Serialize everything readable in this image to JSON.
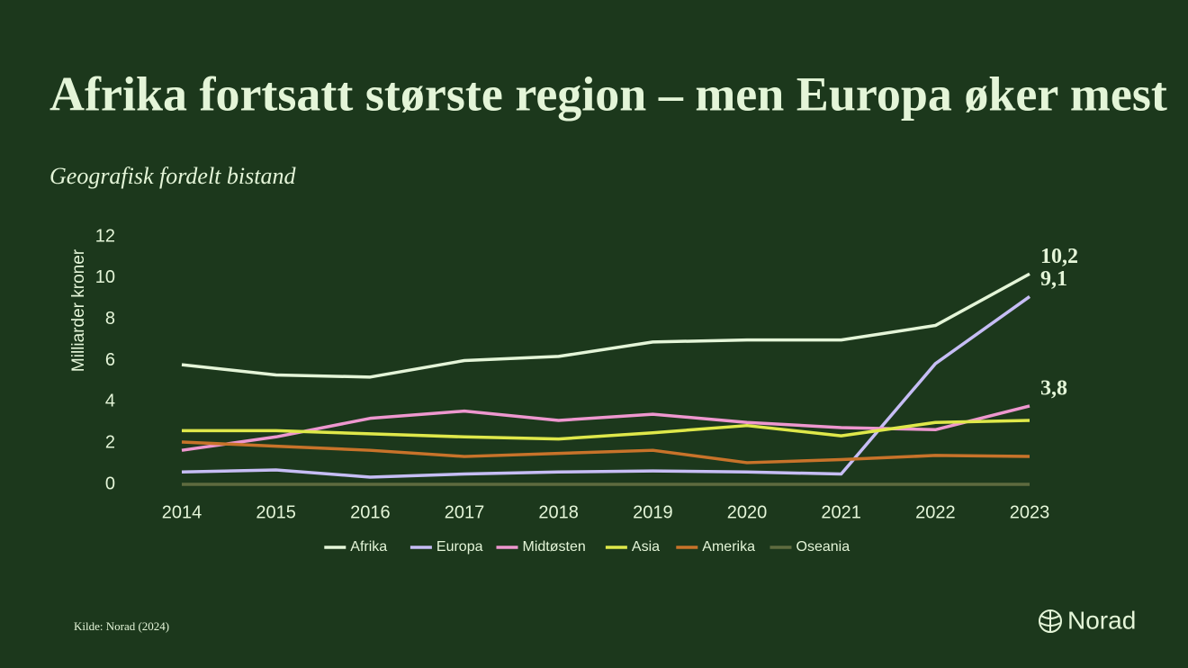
{
  "chart_data": {
    "type": "line",
    "title": "Afrika fortsatt største region – men Europa øker mest",
    "subtitle": "Geografisk fordelt bistand",
    "y_label": "Milliarder kroner",
    "source": "Kilde: Norad (2024)",
    "brand": "Norad",
    "categories": [
      "2014",
      "2015",
      "2016",
      "2017",
      "2018",
      "2019",
      "2020",
      "2021",
      "2022",
      "2023"
    ],
    "ylim": [
      0,
      12
    ],
    "yticks": [
      0,
      2,
      4,
      6,
      8,
      10,
      12
    ],
    "grid": false,
    "series": [
      {
        "name": "Afrika",
        "color": "#e4f5d8",
        "values": [
          5.8,
          5.3,
          5.2,
          6.0,
          6.2,
          6.9,
          7.0,
          7.0,
          7.7,
          10.2
        ],
        "value_labels": [
          null,
          null,
          null,
          null,
          null,
          null,
          null,
          null,
          null,
          "10,2"
        ]
      },
      {
        "name": "Europa",
        "color": "#c6bdf5",
        "values": [
          0.6,
          0.7,
          0.35,
          0.5,
          0.6,
          0.65,
          0.6,
          0.5,
          5.85,
          9.1
        ],
        "value_labels": [
          null,
          null,
          null,
          null,
          null,
          null,
          null,
          null,
          null,
          "9,1"
        ]
      },
      {
        "name": "Midtøsten",
        "color": "#ee97cf",
        "values": [
          1.65,
          2.3,
          3.2,
          3.55,
          3.1,
          3.4,
          3.0,
          2.75,
          2.65,
          3.8
        ],
        "value_labels": [
          null,
          null,
          null,
          null,
          null,
          null,
          null,
          null,
          null,
          "3,8"
        ]
      },
      {
        "name": "Asia",
        "color": "#dfe84a",
        "values": [
          2.6,
          2.6,
          2.45,
          2.3,
          2.2,
          2.5,
          2.85,
          2.35,
          3.0,
          3.1
        ]
      },
      {
        "name": "Amerika",
        "color": "#c8732a",
        "values": [
          2.05,
          1.85,
          1.65,
          1.35,
          1.5,
          1.65,
          1.05,
          1.2,
          1.4,
          1.35
        ]
      },
      {
        "name": "Oseania",
        "color": "#5e6b3f",
        "values": [
          0,
          0,
          0,
          0,
          0,
          0,
          0,
          0,
          0,
          0
        ]
      }
    ]
  }
}
